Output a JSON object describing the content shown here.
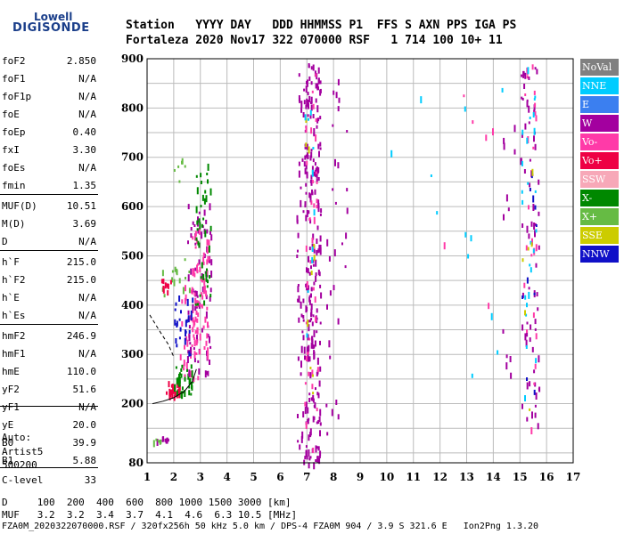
{
  "logo": {
    "line1": "Lowell",
    "line2": "DIGISONDE"
  },
  "header": {
    "row1": "Station   YYYY DAY   DDD HHMMSS P1  FFS S AXN PPS IGA PS",
    "row2": "Fortaleza 2020 Nov17 322 070000 RSF   1 714 100 10+ 11"
  },
  "params": [
    {
      "key": "foF2",
      "value": "2.850"
    },
    {
      "key": "foF1",
      "value": "N/A"
    },
    {
      "key": "foF1p",
      "value": "N/A"
    },
    {
      "key": "foE",
      "value": "N/A"
    },
    {
      "key": "foEp",
      "value": "0.40"
    },
    {
      "key": "fxI",
      "value": "3.30"
    },
    {
      "key": "foEs",
      "value": "N/A"
    },
    {
      "key": "fmin",
      "value": "1.35"
    },
    {
      "key": "MUF(D)",
      "value": "10.51"
    },
    {
      "key": "M(D)",
      "value": "3.69"
    },
    {
      "key": "D",
      "value": "N/A"
    },
    {
      "key": "h`F",
      "value": "215.0"
    },
    {
      "key": "h`F2",
      "value": "215.0"
    },
    {
      "key": "h`E",
      "value": "N/A"
    },
    {
      "key": "h`Es",
      "value": "N/A"
    },
    {
      "key": "hmF2",
      "value": "246.9"
    },
    {
      "key": "hmF1",
      "value": "N/A"
    },
    {
      "key": "hmE",
      "value": "110.0"
    },
    {
      "key": "yF2",
      "value": "51.6"
    },
    {
      "key": "yF1",
      "value": "N/A"
    },
    {
      "key": "yE",
      "value": "20.0"
    },
    {
      "key": "B0",
      "value": "39.9"
    },
    {
      "key": "B1",
      "value": "5.88"
    },
    {
      "key": "C-level",
      "value": "33"
    }
  ],
  "auto": {
    "l1": "Auto:",
    "l2": "Artist5",
    "l3": "500200"
  },
  "legend": [
    {
      "label": "NoVal",
      "color": "#808080"
    },
    {
      "label": "NNE",
      "color": "#00ccff"
    },
    {
      "label": "E",
      "color": "#3b7ff0"
    },
    {
      "label": "W",
      "color": "#a3009f"
    },
    {
      "label": "Vo-",
      "color": "#ff3aa8"
    },
    {
      "label": "Vo+",
      "color": "#ee0044"
    },
    {
      "label": "SSW",
      "color": "#f7a8b8"
    },
    {
      "label": "X-",
      "color": "#008800"
    },
    {
      "label": "X+",
      "color": "#66bb44"
    },
    {
      "label": "SSE",
      "color": "#cccc00"
    },
    {
      "label": "NNW",
      "color": "#1010c8"
    }
  ],
  "footer": {
    "row1": "D     100  200  400  600  800 1000 1500 3000 [km]",
    "row2": "MUF   3.2  3.2  3.4  3.7  4.1  4.6  6.3 10.5 [MHz]",
    "row3": "FZA0M_2020322070000.RSF / 320fx256h 50 kHz 5.0 km / DPS-4 FZA0M 904 / 3.9 S 321.6 E   Ion2Png 1.3.20"
  },
  "chart_data": {
    "type": "scatter",
    "xlim": [
      1,
      17
    ],
    "ylim": [
      80,
      900
    ],
    "xticks": [
      "1",
      "2",
      "3",
      "4",
      "5",
      "6",
      "7",
      "8",
      "9",
      "10",
      "11",
      "12",
      "13",
      "14",
      "15",
      "16",
      "17"
    ],
    "yticks": [
      "80",
      "200",
      "300",
      "400",
      "500",
      "600",
      "700",
      "800",
      "900"
    ],
    "grid": true,
    "trace_profile": [
      [
        1.2,
        200
      ],
      [
        1.6,
        205
      ],
      [
        2.0,
        212
      ],
      [
        2.4,
        225
      ],
      [
        2.7,
        245
      ],
      [
        2.85,
        270
      ]
    ],
    "dashed_profile": [
      [
        1.1,
        380
      ],
      [
        1.5,
        345
      ],
      [
        1.8,
        320
      ],
      [
        2.0,
        295
      ]
    ],
    "echo_clusters": [
      {
        "f0": 1.7,
        "f1": 2.2,
        "h0": 215,
        "h1": 250,
        "color": "#ee0044",
        "n": 30
      },
      {
        "f0": 2.0,
        "f1": 2.8,
        "h0": 220,
        "h1": 280,
        "color": "#008800",
        "n": 35
      },
      {
        "f0": 2.2,
        "f1": 2.9,
        "h0": 250,
        "h1": 450,
        "color": "#ff3aa8",
        "n": 40
      },
      {
        "f0": 2.5,
        "f1": 3.4,
        "h0": 260,
        "h1": 620,
        "color": "#a3009f",
        "n": 80
      },
      {
        "f0": 2.6,
        "f1": 3.3,
        "h0": 300,
        "h1": 560,
        "color": "#ff3aa8",
        "n": 60
      },
      {
        "f0": 2.8,
        "f1": 3.4,
        "h0": 400,
        "h1": 700,
        "color": "#008800",
        "n": 40
      },
      {
        "f0": 2.0,
        "f1": 2.7,
        "h0": 300,
        "h1": 420,
        "color": "#1010c8",
        "n": 25
      },
      {
        "f0": 1.5,
        "f1": 2.6,
        "h0": 420,
        "h1": 500,
        "color": "#66bb44",
        "n": 15
      },
      {
        "f0": 1.5,
        "f1": 1.9,
        "h0": 430,
        "h1": 455,
        "color": "#ee0044",
        "n": 10
      },
      {
        "f0": 1.3,
        "f1": 1.8,
        "h0": 125,
        "h1": 135,
        "color": "#a3009f",
        "n": 10
      },
      {
        "f0": 1.2,
        "f1": 1.5,
        "h0": 125,
        "h1": 130,
        "color": "#66bb44",
        "n": 5
      },
      {
        "f0": 2.0,
        "f1": 2.5,
        "h0": 650,
        "h1": 700,
        "color": "#66bb44",
        "n": 6
      },
      {
        "f0": 6.6,
        "f1": 6.9,
        "h0": 80,
        "h1": 900,
        "color": "#a3009f",
        "n": 45
      },
      {
        "f0": 6.9,
        "f1": 7.2,
        "h0": 80,
        "h1": 900,
        "color": "#a3009f",
        "n": 120
      },
      {
        "f0": 7.2,
        "f1": 7.5,
        "h0": 80,
        "h1": 900,
        "color": "#a3009f",
        "n": 110
      },
      {
        "f0": 6.9,
        "f1": 7.4,
        "h0": 100,
        "h1": 880,
        "color": "#ff3aa8",
        "n": 40
      },
      {
        "f0": 6.9,
        "f1": 7.3,
        "h0": 200,
        "h1": 880,
        "color": "#cccc00",
        "n": 10
      },
      {
        "f0": 6.9,
        "f1": 7.3,
        "h0": 300,
        "h1": 800,
        "color": "#00ccff",
        "n": 10
      },
      {
        "f0": 7.7,
        "f1": 8.3,
        "h0": 140,
        "h1": 870,
        "color": "#a3009f",
        "n": 25
      },
      {
        "f0": 8.4,
        "f1": 8.5,
        "h0": 480,
        "h1": 760,
        "color": "#a3009f",
        "n": 5
      },
      {
        "f0": 14.3,
        "f1": 14.8,
        "h0": 230,
        "h1": 820,
        "color": "#a3009f",
        "n": 12
      },
      {
        "f0": 15.0,
        "f1": 15.7,
        "h0": 150,
        "h1": 900,
        "color": "#a3009f",
        "n": 70
      },
      {
        "f0": 15.1,
        "f1": 15.6,
        "h0": 150,
        "h1": 900,
        "color": "#ff3aa8",
        "n": 25
      },
      {
        "f0": 15.0,
        "f1": 15.6,
        "h0": 150,
        "h1": 900,
        "color": "#00ccff",
        "n": 25
      },
      {
        "f0": 15.0,
        "f1": 15.6,
        "h0": 150,
        "h1": 700,
        "color": "#1010c8",
        "n": 10
      },
      {
        "f0": 15.0,
        "f1": 15.6,
        "h0": 150,
        "h1": 700,
        "color": "#cccc00",
        "n": 6
      },
      {
        "f0": 10.0,
        "f1": 14.5,
        "h0": 250,
        "h1": 900,
        "color": "#00ccff",
        "n": 12
      },
      {
        "f0": 12.0,
        "f1": 14.5,
        "h0": 380,
        "h1": 860,
        "color": "#ff3aa8",
        "n": 6
      }
    ]
  }
}
